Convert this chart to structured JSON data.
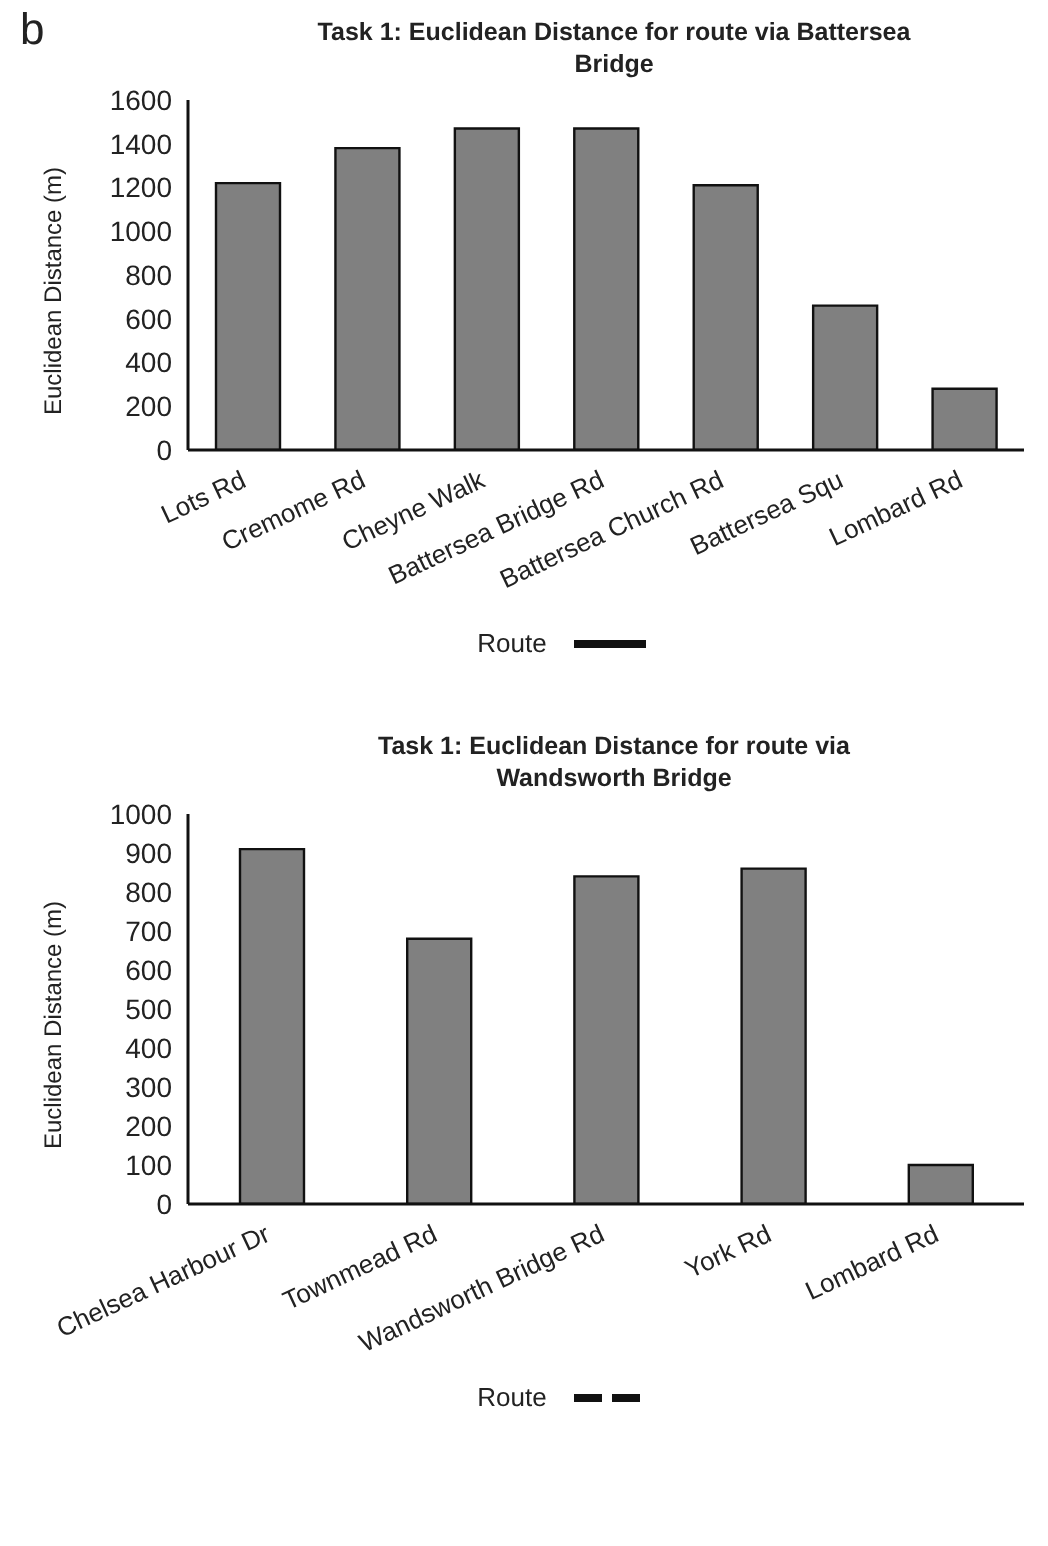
{
  "chart_data": [
    {
      "type": "bar",
      "title": "Task 1: Euclidean Distance for route via Battersea Bridge",
      "ylabel": "Euclidean Distance (m)",
      "categories": [
        "Lots Rd",
        "Cremome Rd",
        "Cheyne Walk",
        "Battersea Bridge Rd",
        "Battersea Church Rd",
        "Battersea Squ",
        "Lombard Rd"
      ],
      "values": [
        1220,
        1380,
        1470,
        1470,
        1210,
        660,
        280
      ],
      "color": "#808080",
      "ylim": [
        0,
        1600
      ],
      "yticks": [
        0,
        200,
        400,
        600,
        800,
        1000,
        1200,
        1400,
        1600
      ],
      "grid": false,
      "legend_title": "Route",
      "line_style": "solid",
      "annotations": [
        "b"
      ]
    },
    {
      "type": "bar",
      "title": "Task 1: Euclidean Distance for route via Wandsworth Bridge",
      "ylabel": "Euclidean Distance (m)",
      "categories": [
        "Chelsea Harbour Dr",
        "Townmead Rd",
        "Wandsworth Bridge Rd",
        "York Rd",
        "Lombard Rd"
      ],
      "values": [
        910,
        680,
        840,
        860,
        100
      ],
      "color": "#808080",
      "ylim": [
        0,
        1000
      ],
      "yticks": [
        0,
        100,
        200,
        300,
        400,
        500,
        600,
        700,
        800,
        900,
        1000
      ],
      "grid": false,
      "legend_title": "Route",
      "line_style": "dashed"
    }
  ]
}
